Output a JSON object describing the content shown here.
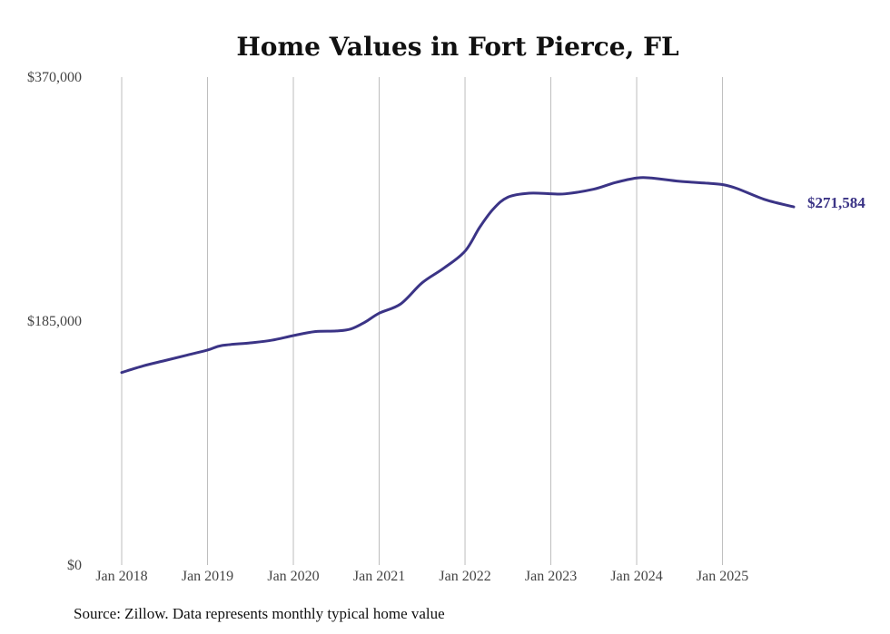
{
  "chart_data": {
    "type": "line",
    "title": "Home Values in Fort Pierce, FL",
    "xlabel": "",
    "ylabel": "",
    "ylim": [
      0,
      370000
    ],
    "y_ticks": [
      "$0",
      "$185,000",
      "$370,000"
    ],
    "y_tick_values": [
      0,
      185000,
      370000
    ],
    "x_ticks": [
      "Jan 2018",
      "Jan 2019",
      "Jan 2020",
      "Jan 2021",
      "Jan 2022",
      "Jan 2023",
      "Jan 2024",
      "Jan 2025"
    ],
    "x_tick_values": [
      2018,
      2019,
      2020,
      2021,
      2022,
      2023,
      2024,
      2025
    ],
    "xlim": [
      2018,
      2025.83
    ],
    "grid": "vertical",
    "series_color": "#3b3486",
    "series": [
      {
        "name": "Typical home value",
        "x": [
          2018.0,
          2018.25,
          2018.5,
          2018.75,
          2019.0,
          2019.17,
          2019.5,
          2019.75,
          2020.0,
          2020.25,
          2020.5,
          2020.67,
          2020.83,
          2021.0,
          2021.25,
          2021.5,
          2021.75,
          2022.0,
          2022.17,
          2022.33,
          2022.5,
          2022.75,
          2023.0,
          2023.17,
          2023.5,
          2023.75,
          2024.0,
          2024.17,
          2024.5,
          2024.83,
          2025.0,
          2025.17,
          2025.5,
          2025.83
        ],
        "values": [
          146000,
          151000,
          155000,
          159000,
          163000,
          166500,
          168500,
          170500,
          174000,
          177000,
          177500,
          179000,
          184000,
          191000,
          198000,
          214000,
          225000,
          238000,
          256000,
          270000,
          279000,
          282000,
          281500,
          281500,
          285000,
          290000,
          293500,
          293500,
          291000,
          289500,
          288500,
          285500,
          277000,
          271584
        ]
      }
    ],
    "end_label": "$271,584"
  },
  "source_note": "Source: Zillow. Data represents monthly typical home value"
}
